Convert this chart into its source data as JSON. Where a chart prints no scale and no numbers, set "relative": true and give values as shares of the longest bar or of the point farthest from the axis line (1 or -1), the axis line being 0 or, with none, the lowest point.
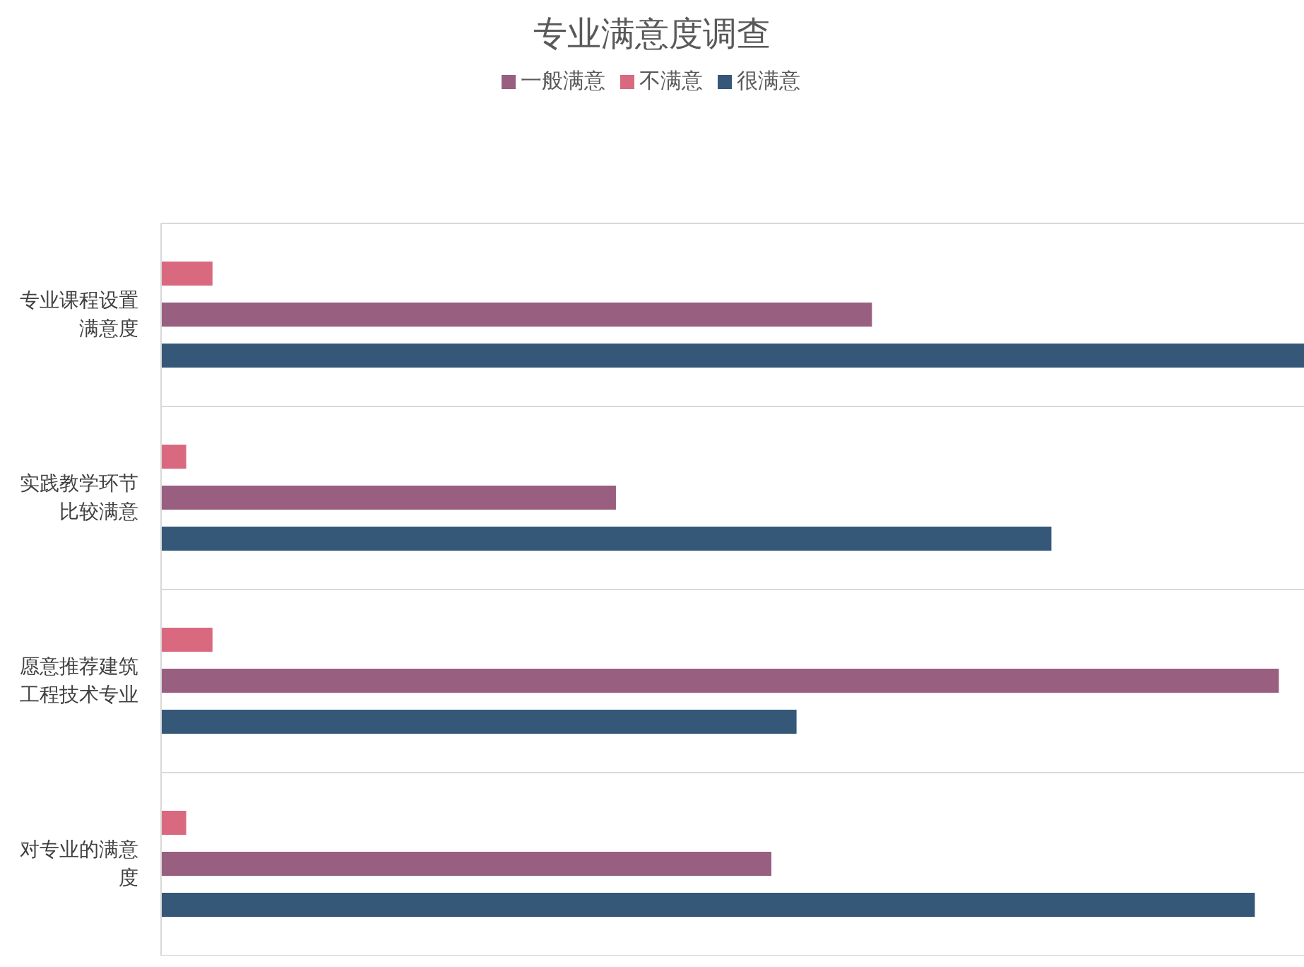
{
  "chart_data": {
    "type": "bar",
    "orientation": "horizontal",
    "relative": true,
    "title": "专业满意度调查",
    "categories": [
      "专业课程设置满意度",
      "实践教学环节比较满意",
      "愿意推荐建筑工程技术专业",
      "对专业的满意度"
    ],
    "series": [
      {
        "name": "不满意",
        "color": "#d9697e",
        "values": [
          0.045,
          0.022,
          0.045,
          0.022
        ]
      },
      {
        "name": "一般满意",
        "color": "#985f80",
        "values": [
          0.622,
          0.398,
          0.978,
          0.534
        ]
      },
      {
        "name": "很满意",
        "color": "#355879",
        "values": [
          1,
          0.779,
          0.556,
          0.957
        ]
      }
    ],
    "grid": "y",
    "legend": "top"
  }
}
